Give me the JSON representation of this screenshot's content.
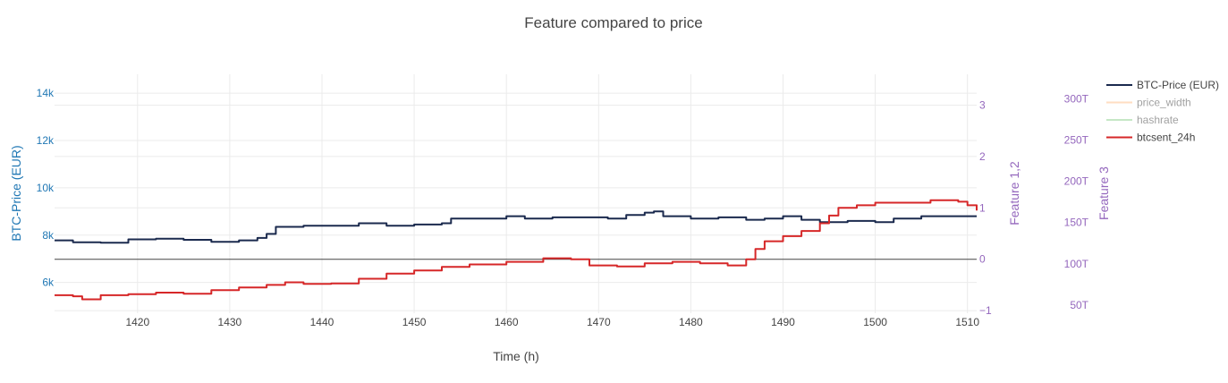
{
  "chart_data": {
    "type": "line",
    "title": "Feature compared to price",
    "xlabel": "Time (h)",
    "x_ticks": [
      1420,
      1430,
      1440,
      1450,
      1460,
      1470,
      1480,
      1490,
      1500,
      1510
    ],
    "xlim": [
      1411,
      1511
    ],
    "y_axes": [
      {
        "id": "y1",
        "title": "BTC-Price (EUR)",
        "side": "left",
        "range": [
          4700,
          14800
        ],
        "ticks": [
          6000,
          8000,
          10000,
          12000,
          14000
        ],
        "tick_labels": [
          "6k",
          "8k",
          "10k",
          "12k",
          "14k"
        ],
        "color": "#1f77b4"
      },
      {
        "id": "y2",
        "title": "Feature 1,2",
        "side": "right",
        "range": [
          -1.05,
          3.6
        ],
        "ticks": [
          -1,
          0,
          1,
          2,
          3
        ],
        "tick_labels": [
          "−1",
          "0",
          "1",
          "2",
          "3"
        ],
        "color": "#9467bd"
      },
      {
        "id": "y3",
        "title": "Feature 3",
        "side": "right",
        "range": [
          40,
          330
        ],
        "ticks": [
          50,
          100,
          150,
          200,
          250,
          300
        ],
        "tick_labels": [
          "50T",
          "100T",
          "150T",
          "200T",
          "250T",
          "300T"
        ],
        "color": "#9467bd"
      }
    ],
    "grid": true,
    "legend_position": "right",
    "series": [
      {
        "name": "BTC-Price (EUR)",
        "axis": "y1",
        "color": "#1b2a4e",
        "visible": true,
        "x": [
          1411,
          1413,
          1416,
          1419,
          1422,
          1425,
          1428,
          1431,
          1433,
          1434,
          1435,
          1438,
          1441,
          1444,
          1447,
          1450,
          1453,
          1454,
          1457,
          1460,
          1462,
          1465,
          1468,
          1471,
          1473,
          1475,
          1476,
          1477,
          1480,
          1483,
          1486,
          1488,
          1490,
          1492,
          1494,
          1497,
          1500,
          1502,
          1505,
          1508,
          1511
        ],
        "y": [
          7780,
          7700,
          7680,
          7820,
          7850,
          7800,
          7720,
          7780,
          7880,
          8050,
          8350,
          8400,
          8400,
          8500,
          8400,
          8450,
          8500,
          8700,
          8700,
          8800,
          8700,
          8750,
          8750,
          8700,
          8850,
          8950,
          9000,
          8800,
          8700,
          8750,
          8650,
          8700,
          8800,
          8650,
          8550,
          8600,
          8550,
          8700,
          8800,
          8800,
          8800
        ]
      },
      {
        "name": "price_width",
        "axis": "y2",
        "color": "#ffbf87",
        "visible": false,
        "x": [],
        "y": []
      },
      {
        "name": "hashrate",
        "axis": "y3",
        "color": "#8fd18f",
        "visible": false,
        "x": [],
        "y": []
      },
      {
        "name": "btcsent_24h",
        "axis": "y2",
        "color": "#d62728",
        "visible": true,
        "x": [
          1411,
          1413,
          1414,
          1416,
          1419,
          1422,
          1425,
          1428,
          1431,
          1434,
          1436,
          1438,
          1441,
          1444,
          1447,
          1450,
          1453,
          1456,
          1460,
          1464,
          1467,
          1469,
          1472,
          1475,
          1478,
          1481,
          1484,
          1486,
          1487,
          1488,
          1490,
          1492,
          1494,
          1495,
          1496,
          1498,
          1500,
          1503,
          1506,
          1509,
          1510,
          1511
        ],
        "y": [
          -0.7,
          -0.72,
          -0.78,
          -0.7,
          -0.68,
          -0.65,
          -0.67,
          -0.6,
          -0.55,
          -0.5,
          -0.45,
          -0.48,
          -0.47,
          -0.38,
          -0.28,
          -0.22,
          -0.15,
          -0.1,
          -0.05,
          0.02,
          0.0,
          -0.12,
          -0.14,
          -0.08,
          -0.05,
          -0.08,
          -0.12,
          0.0,
          0.2,
          0.35,
          0.45,
          0.55,
          0.7,
          0.85,
          1.0,
          1.05,
          1.1,
          1.1,
          1.15,
          1.12,
          1.05,
          0.95
        ]
      }
    ]
  }
}
